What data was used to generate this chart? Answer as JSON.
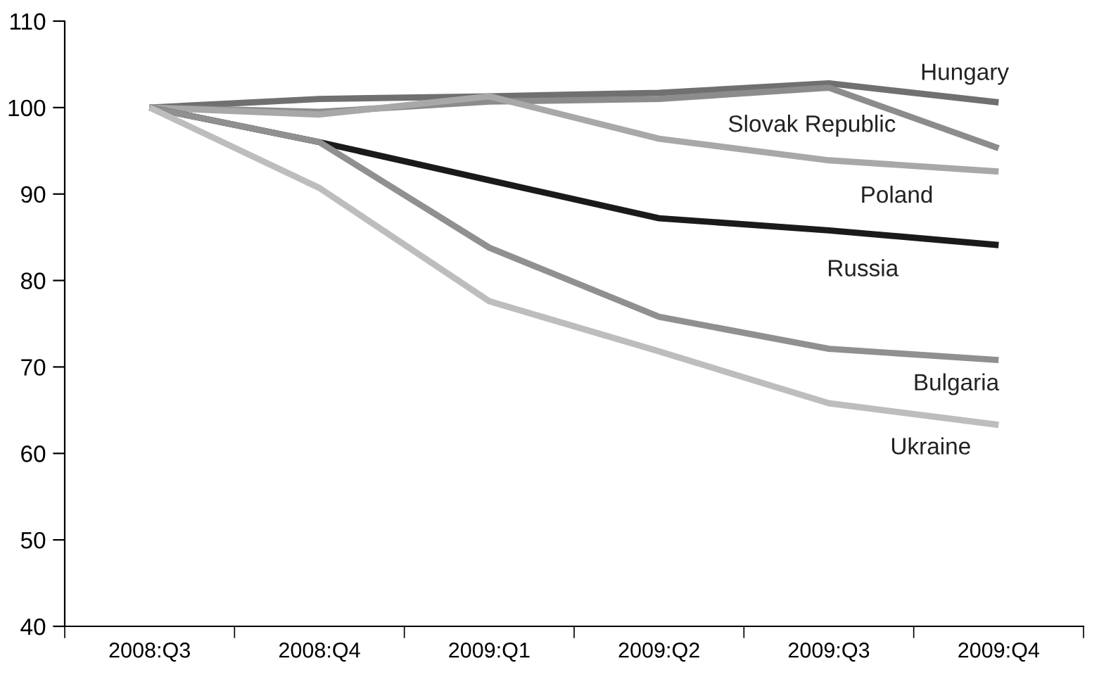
{
  "chart_data": {
    "type": "line",
    "categories": [
      "2008:Q3",
      "2008:Q4",
      "2009:Q1",
      "2009:Q2",
      "2009:Q3",
      "2009:Q4"
    ],
    "series": [
      {
        "name": "Hungary",
        "color": "#707070",
        "values": [
          100,
          101,
          101.3,
          101.7,
          102.8,
          100.6
        ]
      },
      {
        "name": "Slovak Republic",
        "color": "#8c8c8c",
        "values": [
          100,
          99.5,
          100.7,
          101,
          102.3,
          95.3
        ]
      },
      {
        "name": "Poland",
        "color": "#a8a8a8",
        "values": [
          100,
          99.2,
          101.3,
          96.4,
          93.9,
          92.6
        ]
      },
      {
        "name": "Russia",
        "color": "#1a1a1a",
        "values": [
          100,
          96,
          91.6,
          87.2,
          85.8,
          84.1
        ]
      },
      {
        "name": "Bulgaria",
        "color": "#909090",
        "values": [
          100,
          96,
          83.8,
          75.8,
          72.1,
          70.8
        ]
      },
      {
        "name": "Ukraine",
        "color": "#bdbdbd",
        "values": [
          100,
          90.7,
          77.6,
          71.8,
          65.8,
          63.3
        ]
      }
    ],
    "ylim": [
      40,
      110
    ],
    "yticks": [
      40,
      50,
      60,
      70,
      80,
      90,
      100,
      110
    ],
    "grid": false,
    "legend": false,
    "marker": "none",
    "line_style": "solid"
  }
}
